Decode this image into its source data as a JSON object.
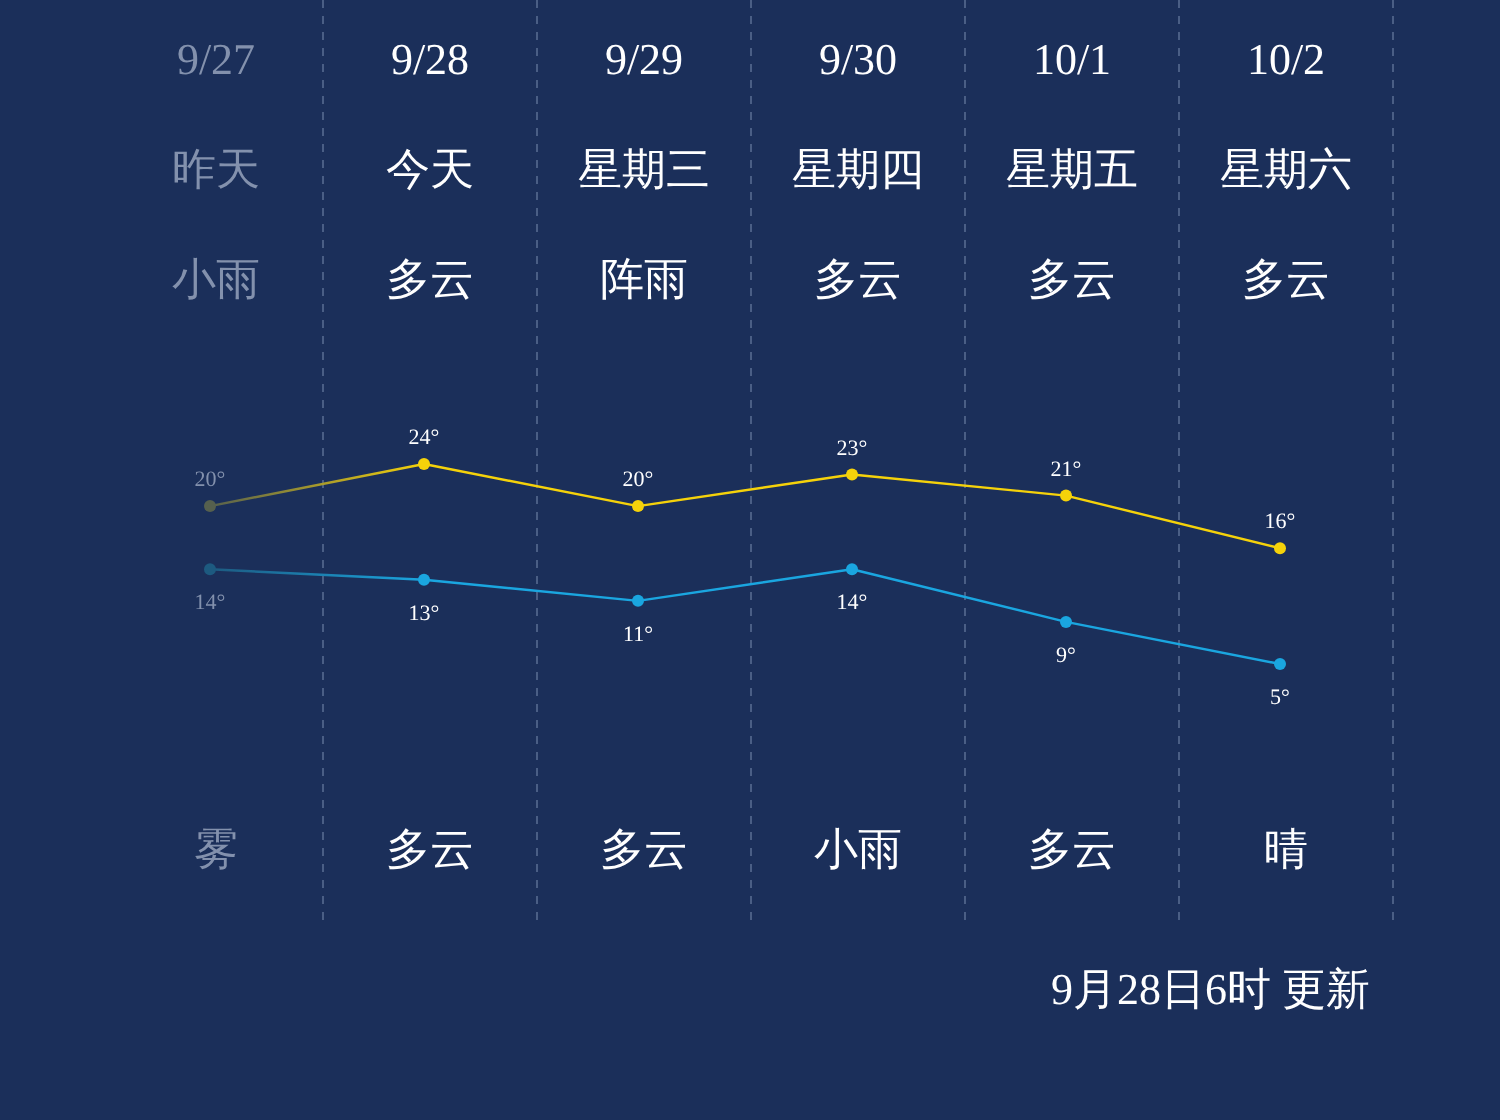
{
  "chart_data": {
    "type": "line",
    "categories": [
      "9/27",
      "9/28",
      "9/29",
      "9/30",
      "10/1",
      "10/2"
    ],
    "series": [
      {
        "color": "#f5d20a",
        "colors": [
          "#56604e",
          "#f5d20a",
          "#f5d20a",
          "#f5d20a",
          "#f5d20a",
          "#f5d20a"
        ],
        "values": [
          20,
          24,
          20,
          23,
          21,
          16
        ],
        "value_labels": [
          "20°",
          "24°",
          "20°",
          "23°",
          "21°",
          "16°"
        ]
      },
      {
        "color": "#1aa6e0",
        "colors": [
          "#1d5a80",
          "#1aa6e0",
          "#1aa6e0",
          "#1aa6e0",
          "#1aa6e0",
          "#1aa6e0"
        ],
        "values": [
          14,
          13,
          11,
          14,
          9,
          5
        ],
        "value_labels": [
          "14°",
          "13°",
          "11°",
          "14°",
          "9°",
          "5°"
        ]
      }
    ],
    "marker": "circle",
    "grid": "x",
    "annotations": [
      "昨天",
      "今天",
      "星期三",
      "星期四",
      "星期五",
      "星期六",
      "小雨",
      "多云",
      "阵雨",
      "多云",
      "多云",
      "多云",
      "雾",
      "多云",
      "多云",
      "小雨",
      "多云",
      "晴",
      "9月28日6时 更新"
    ]
  }
}
